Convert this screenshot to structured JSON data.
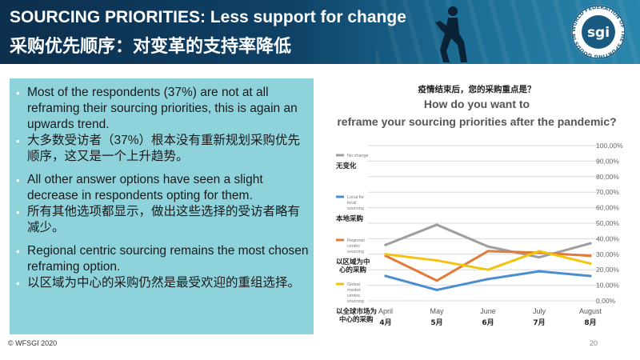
{
  "header": {
    "title_en": "SOURCING PRIORITIES: Less support for change",
    "title_zh": "采购优先顺序：对变革的支持率降低",
    "logo_text": "sgi",
    "logo_ring": "WORLD FEDERATION OF THE SPORTING GOODS INDUSTRY",
    "colors": {
      "band_dark": "#0c2f4d",
      "band_light": "#2a86ad"
    }
  },
  "bullets": [
    {
      "text": "Most of the respondents (37%) are not at all reframing their sourcing priorities, this is again an upwards trend."
    },
    {
      "text": "大多数受访者（37%）根本没有重新规划采购优先顺序，这又是一个上升趋势。"
    },
    {
      "text": "All other answer options have seen a slight decrease in respondents opting for them."
    },
    {
      "text": "所有其他选项都显示，做出这些选择的受访者略有减少。"
    },
    {
      "text": "Regional centric sourcing remains the most chosen reframing option."
    },
    {
      "text": "以区域为中心的采购仍然是最受欢迎的重组选择。"
    }
  ],
  "bullet_panel_color": "#8ed3dc",
  "chart_data": {
    "type": "line",
    "title_zh": "疫情结束后，您的采购重点是？",
    "title_en": "How do you want to reframe your sourcing priorities after the pandemic?",
    "categories": [
      "April",
      "May",
      "June",
      "July",
      "August"
    ],
    "categories_zh": [
      "4月",
      "5月",
      "6月",
      "7月",
      "8月"
    ],
    "ylim": [
      0,
      100
    ],
    "y_ticks": [
      "0,00%",
      "10,00%",
      "20,00%",
      "30,00%",
      "40,00%",
      "50,00%",
      "60,00%",
      "70,00%",
      "80,00%",
      "90,00%",
      "100,00%"
    ],
    "series": [
      {
        "name": "No change",
        "name_zh": "无变化",
        "color": "#9e9e9e",
        "values": [
          36,
          49,
          35,
          28,
          37
        ]
      },
      {
        "name": "Local for local sourcing",
        "name_zh": "本地采购",
        "color": "#4a8ed0",
        "values": [
          16,
          7,
          14,
          19,
          16
        ]
      },
      {
        "name": "Regional centric sourcing",
        "name_zh": "以区域为中心的采购",
        "color": "#e07b39",
        "values": [
          29,
          13,
          32,
          31,
          29
        ]
      },
      {
        "name": "Global market centric sourcing",
        "name_zh": "以全球市场为中心的采购",
        "color": "#f2c40f",
        "values": [
          30,
          26,
          20,
          32,
          24
        ]
      }
    ],
    "legend": "left"
  },
  "footer": {
    "copyright": "© WFSGI 2020",
    "page": "20"
  }
}
